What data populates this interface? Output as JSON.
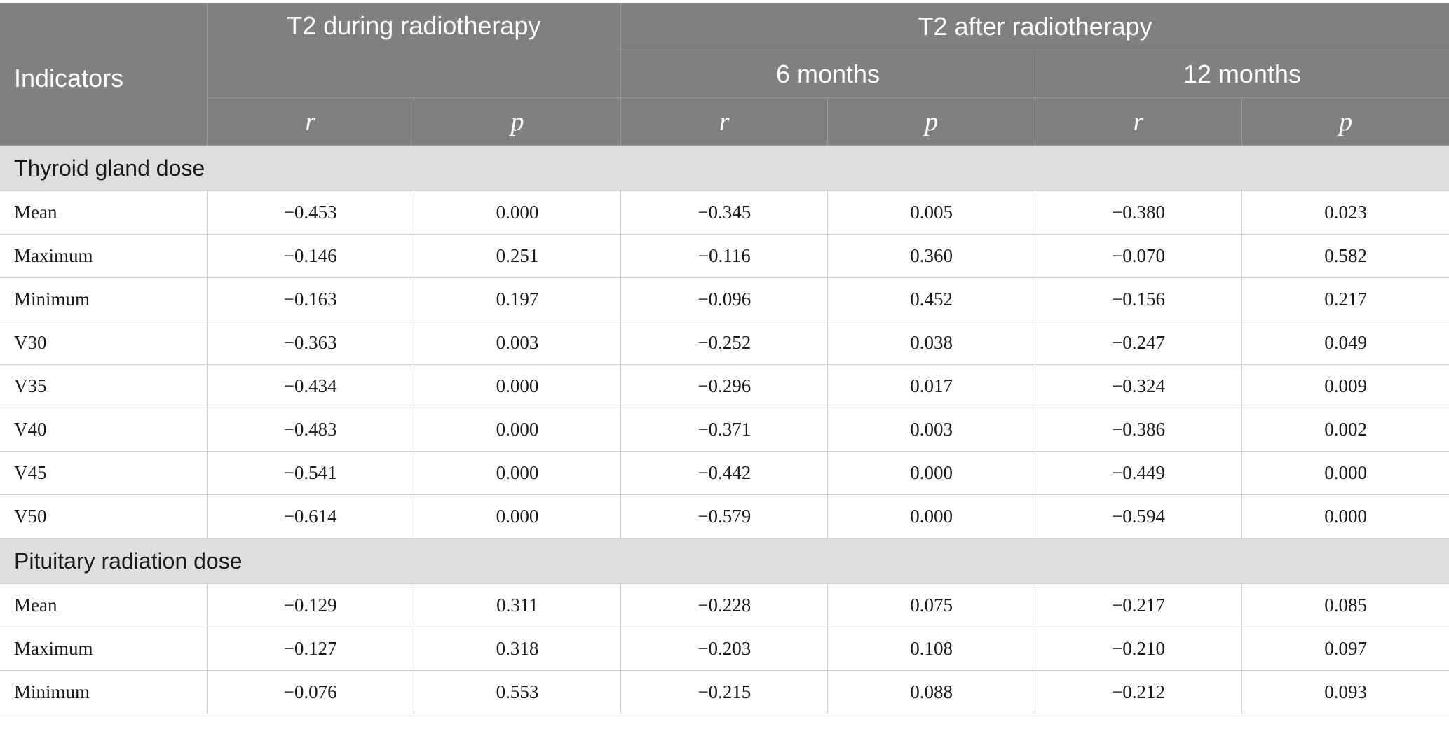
{
  "header": {
    "indicators": "Indicators",
    "during": "T2 during radiotherapy",
    "after": "T2 after radiotherapy",
    "six_months": "6 months",
    "twelve_months": "12 months",
    "r": "r",
    "p": "p"
  },
  "sections": [
    {
      "title": "Thyroid gland dose",
      "rows": [
        {
          "label": "Mean",
          "values": [
            "−0.453",
            "0.000",
            "−0.345",
            "0.005",
            "−0.380",
            "0.023"
          ]
        },
        {
          "label": "Maximum",
          "values": [
            "−0.146",
            "0.251",
            "−0.116",
            "0.360",
            "−0.070",
            "0.582"
          ]
        },
        {
          "label": "Minimum",
          "values": [
            "−0.163",
            "0.197",
            "−0.096",
            "0.452",
            "−0.156",
            "0.217"
          ]
        },
        {
          "label": "V30",
          "values": [
            "−0.363",
            "0.003",
            "−0.252",
            "0.038",
            "−0.247",
            "0.049"
          ]
        },
        {
          "label": "V35",
          "values": [
            "−0.434",
            "0.000",
            "−0.296",
            "0.017",
            "−0.324",
            "0.009"
          ]
        },
        {
          "label": "V40",
          "values": [
            "−0.483",
            "0.000",
            "−0.371",
            "0.003",
            "−0.386",
            "0.002"
          ]
        },
        {
          "label": "V45",
          "values": [
            "−0.541",
            "0.000",
            "−0.442",
            "0.000",
            "−0.449",
            "0.000"
          ]
        },
        {
          "label": "V50",
          "values": [
            "−0.614",
            "0.000",
            "−0.579",
            "0.000",
            "−0.594",
            "0.000"
          ]
        }
      ]
    },
    {
      "title": "Pituitary radiation dose",
      "rows": [
        {
          "label": "Mean",
          "values": [
            "−0.129",
            "0.311",
            "−0.228",
            "0.075",
            "−0.217",
            "0.085"
          ]
        },
        {
          "label": "Maximum",
          "values": [
            "−0.127",
            "0.318",
            "−0.203",
            "0.108",
            "−0.210",
            "0.097"
          ]
        },
        {
          "label": "Minimum",
          "values": [
            "−0.076",
            "0.553",
            "−0.215",
            "0.088",
            "−0.212",
            "0.093"
          ]
        }
      ]
    }
  ]
}
